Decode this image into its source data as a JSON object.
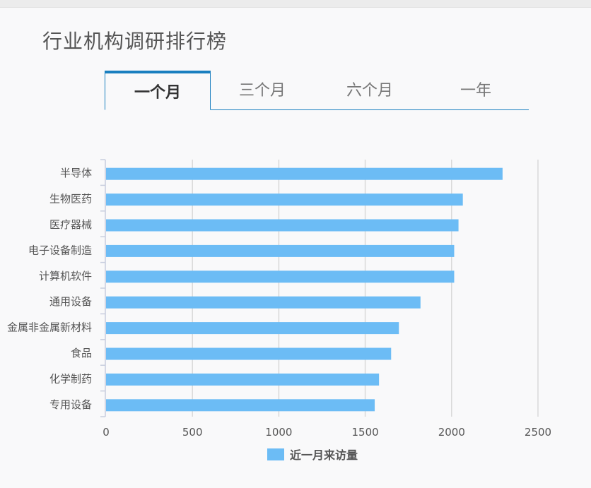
{
  "page": {
    "title": "行业机构调研排行榜"
  },
  "tabs": [
    {
      "label": "一个月",
      "active": true
    },
    {
      "label": "三个月",
      "active": false
    },
    {
      "label": "六个月",
      "active": false
    },
    {
      "label": "一年",
      "active": false
    }
  ],
  "colors": {
    "bar": "#6cbcf5",
    "tab_accent": "#1a7fbf",
    "grid": "#d9d9d9"
  },
  "chart_data": {
    "type": "bar",
    "orientation": "horizontal",
    "categories": [
      "半导体",
      "生物医药",
      "医疗器械",
      "电子设备制造",
      "计算机软件",
      "通用设备",
      "金属非金属新材料",
      "食品",
      "化学制药",
      "专用设备"
    ],
    "series": [
      {
        "name": "近一月来访量",
        "values": [
          2295,
          2065,
          2040,
          2015,
          2015,
          1820,
          1695,
          1650,
          1580,
          1555
        ]
      }
    ],
    "xlim": [
      0,
      2500
    ],
    "xticks": [
      0,
      500,
      1000,
      1500,
      2000,
      2500
    ],
    "grid": true,
    "legend": "bottom"
  }
}
